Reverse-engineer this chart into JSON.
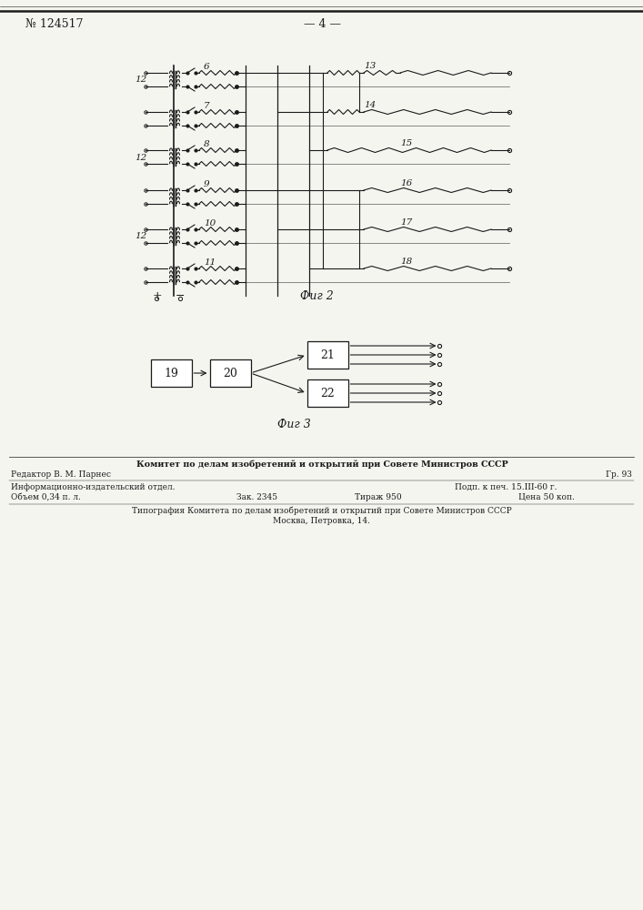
{
  "patent_num": "№ 124517",
  "page_num": "4",
  "fig2_label": "Фиг 2",
  "fig3_label": "Фиг 3",
  "bg_color": "#f5f5f0",
  "line_color": "#1a1a1a",
  "row_labels": [
    "6",
    "7",
    "8",
    "9",
    "10",
    "11"
  ],
  "out_labels": [
    "13",
    "14",
    "15",
    "16",
    "17",
    "18"
  ],
  "left_labels": [
    "12",
    "",
    "12",
    "",
    "12",
    ""
  ],
  "box19": "19",
  "box20": "20",
  "box21": "21",
  "box22": "22",
  "plus": "+",
  "minus": "−",
  "footer_bold": "Комитет по делам изобретений и открытий при Совете Министров СССР",
  "footer_editor": "Редактор В. М. Парнес",
  "footer_gr": "Гр. 93",
  "footer_info": "Информационно-издательский отдел.",
  "footer_vol": "Объем 0,34 п. л.",
  "footer_zak": "Зак. 2345",
  "footer_tir": "Тираж 950",
  "footer_podp": "Подп. к печ. 15.III-60 г.",
  "footer_cena": "Цена 50 коп.",
  "footer_tip": "Типография Комитета по делам изобретений и открытий при Совете Министров СССР",
  "footer_msk": "Москва, Петровка, 14."
}
